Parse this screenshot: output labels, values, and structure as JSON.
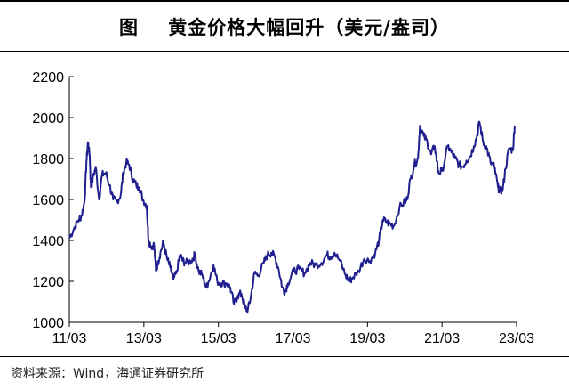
{
  "header": {
    "title": "图    黄金价格大幅回升（美元/盎司）"
  },
  "footer": {
    "source": "资料来源：Wind，海通证券研究所"
  },
  "colors": {
    "series": "#1f1f8f",
    "axis": "#000000"
  },
  "chart_data": {
    "type": "line",
    "title": "黄金价格大幅回升（美元/盎司）",
    "xlabel": "",
    "ylabel": "",
    "x_ticks": [
      "11/03",
      "13/03",
      "15/03",
      "17/03",
      "19/03",
      "21/03",
      "23/03"
    ],
    "y_ticks": [
      1000,
      1200,
      1400,
      1600,
      1800,
      2000,
      2200
    ],
    "xlim": [
      2011.17,
      2023.2
    ],
    "ylim": [
      1000,
      2200
    ],
    "grid": false,
    "legend": "none",
    "series": [
      {
        "x": [
          2011.17,
          2011.3,
          2011.42,
          2011.5,
          2011.58,
          2011.63,
          2011.67,
          2011.72,
          2011.75,
          2011.8,
          2011.88,
          2011.97,
          2012.05,
          2012.15,
          2012.25,
          2012.35,
          2012.45,
          2012.55,
          2012.62,
          2012.7,
          2012.78,
          2012.88,
          2012.97,
          2013.05,
          2013.15,
          2013.25,
          2013.3,
          2013.38,
          2013.45,
          2013.5,
          2013.55,
          2013.62,
          2013.7,
          2013.8,
          2013.88,
          2013.97,
          2014.05,
          2014.15,
          2014.22,
          2014.3,
          2014.45,
          2014.55,
          2014.65,
          2014.75,
          2014.85,
          2014.92,
          2015.05,
          2015.15,
          2015.25,
          2015.4,
          2015.5,
          2015.6,
          2015.7,
          2015.8,
          2015.9,
          2015.97,
          2016.05,
          2016.15,
          2016.25,
          2016.4,
          2016.5,
          2016.6,
          2016.7,
          2016.8,
          2016.9,
          2016.97,
          2017.05,
          2017.2,
          2017.35,
          2017.5,
          2017.65,
          2017.8,
          2017.95,
          2018.1,
          2018.2,
          2018.3,
          2018.45,
          2018.6,
          2018.7,
          2018.8,
          2018.95,
          2019.1,
          2019.25,
          2019.4,
          2019.5,
          2019.6,
          2019.7,
          2019.8,
          2019.9,
          2020.05,
          2020.2,
          2020.25,
          2020.35,
          2020.45,
          2020.55,
          2020.6,
          2020.7,
          2020.8,
          2020.9,
          2021.0,
          2021.1,
          2021.2,
          2021.35,
          2021.45,
          2021.55,
          2021.65,
          2021.75,
          2021.85,
          2021.95,
          2022.05,
          2022.15,
          2022.2,
          2022.3,
          2022.4,
          2022.5,
          2022.6,
          2022.7,
          2022.75,
          2022.83,
          2022.9,
          2023.0,
          2023.1,
          2023.15
        ],
        "values": [
          1410,
          1460,
          1500,
          1520,
          1590,
          1780,
          1880,
          1810,
          1660,
          1700,
          1760,
          1600,
          1720,
          1730,
          1670,
          1600,
          1590,
          1620,
          1730,
          1780,
          1770,
          1700,
          1670,
          1660,
          1600,
          1570,
          1400,
          1370,
          1380,
          1250,
          1290,
          1340,
          1390,
          1310,
          1270,
          1210,
          1240,
          1330,
          1300,
          1290,
          1300,
          1330,
          1250,
          1230,
          1170,
          1200,
          1280,
          1200,
          1190,
          1190,
          1170,
          1090,
          1130,
          1140,
          1070,
          1060,
          1120,
          1240,
          1230,
          1290,
          1330,
          1340,
          1320,
          1260,
          1170,
          1150,
          1190,
          1250,
          1260,
          1240,
          1290,
          1280,
          1290,
          1330,
          1320,
          1340,
          1300,
          1230,
          1200,
          1220,
          1250,
          1310,
          1300,
          1340,
          1400,
          1500,
          1490,
          1480,
          1470,
          1560,
          1590,
          1600,
          1700,
          1770,
          1800,
          1960,
          1910,
          1880,
          1820,
          1860,
          1730,
          1740,
          1860,
          1830,
          1800,
          1770,
          1760,
          1790,
          1810,
          1860,
          1920,
          1980,
          1880,
          1850,
          1780,
          1760,
          1660,
          1640,
          1650,
          1750,
          1850,
          1840,
          1960
        ]
      }
    ]
  }
}
